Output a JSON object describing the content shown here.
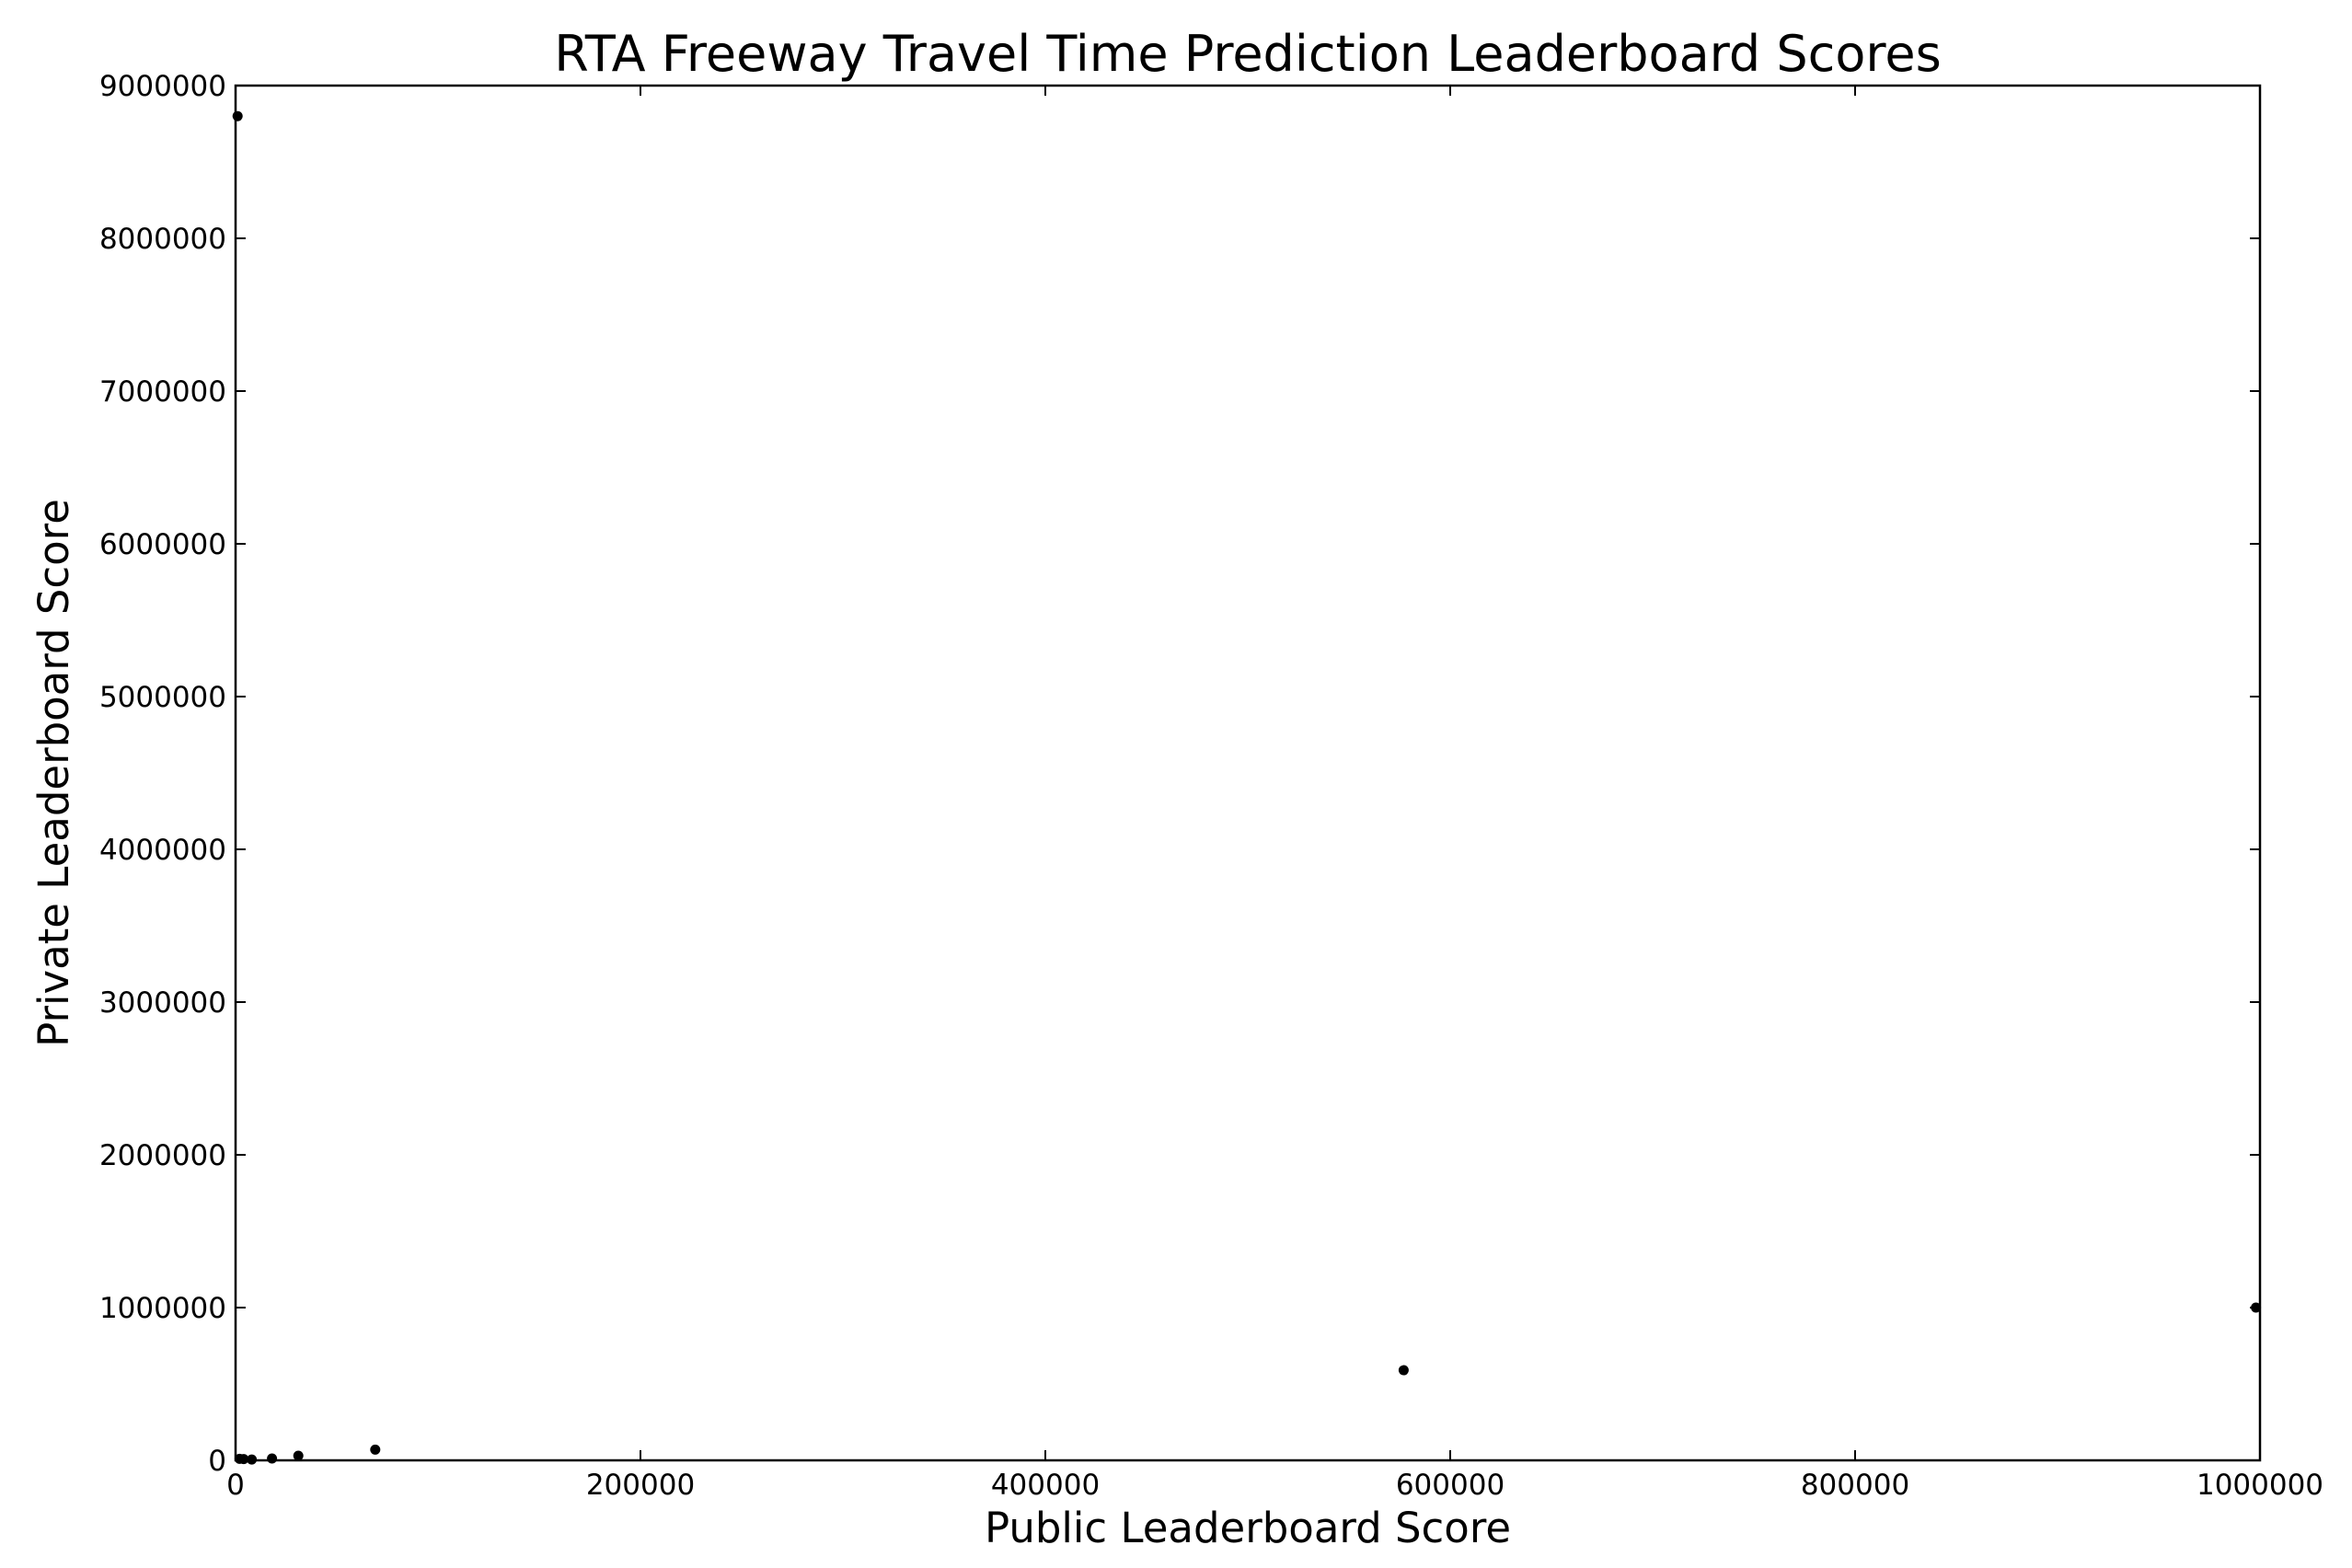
{
  "chart_data": {
    "type": "scatter",
    "title": "RTA Freeway Travel Time Prediction Leaderboard Scores",
    "xlabel": "Public Leaderboard Score",
    "ylabel": "Private Leaderboard Score",
    "xlim": [
      0,
      1000000
    ],
    "ylim": [
      0,
      9000000
    ],
    "xticks": [
      0,
      200000,
      400000,
      600000,
      800000,
      1000000
    ],
    "xtick_labels": [
      "0",
      "200000",
      "400000",
      "600000",
      "800000",
      "1000000"
    ],
    "yticks": [
      0,
      1000000,
      2000000,
      3000000,
      4000000,
      5000000,
      6000000,
      7000000,
      8000000,
      9000000
    ],
    "ytick_labels": [
      "0",
      "1000000",
      "2000000",
      "3000000",
      "4000000",
      "5000000",
      "6000000",
      "7000000",
      "8000000",
      "9000000"
    ],
    "grid": false,
    "marker_color": "#000000",
    "points": [
      {
        "x": 1000,
        "y": 8800000
      },
      {
        "x": 2000,
        "y": 10000
      },
      {
        "x": 4000,
        "y": 8000
      },
      {
        "x": 8000,
        "y": 5000
      },
      {
        "x": 18000,
        "y": 12000
      },
      {
        "x": 31000,
        "y": 30000
      },
      {
        "x": 69000,
        "y": 70000
      },
      {
        "x": 577000,
        "y": 590000
      },
      {
        "x": 998000,
        "y": 1000000
      }
    ]
  }
}
